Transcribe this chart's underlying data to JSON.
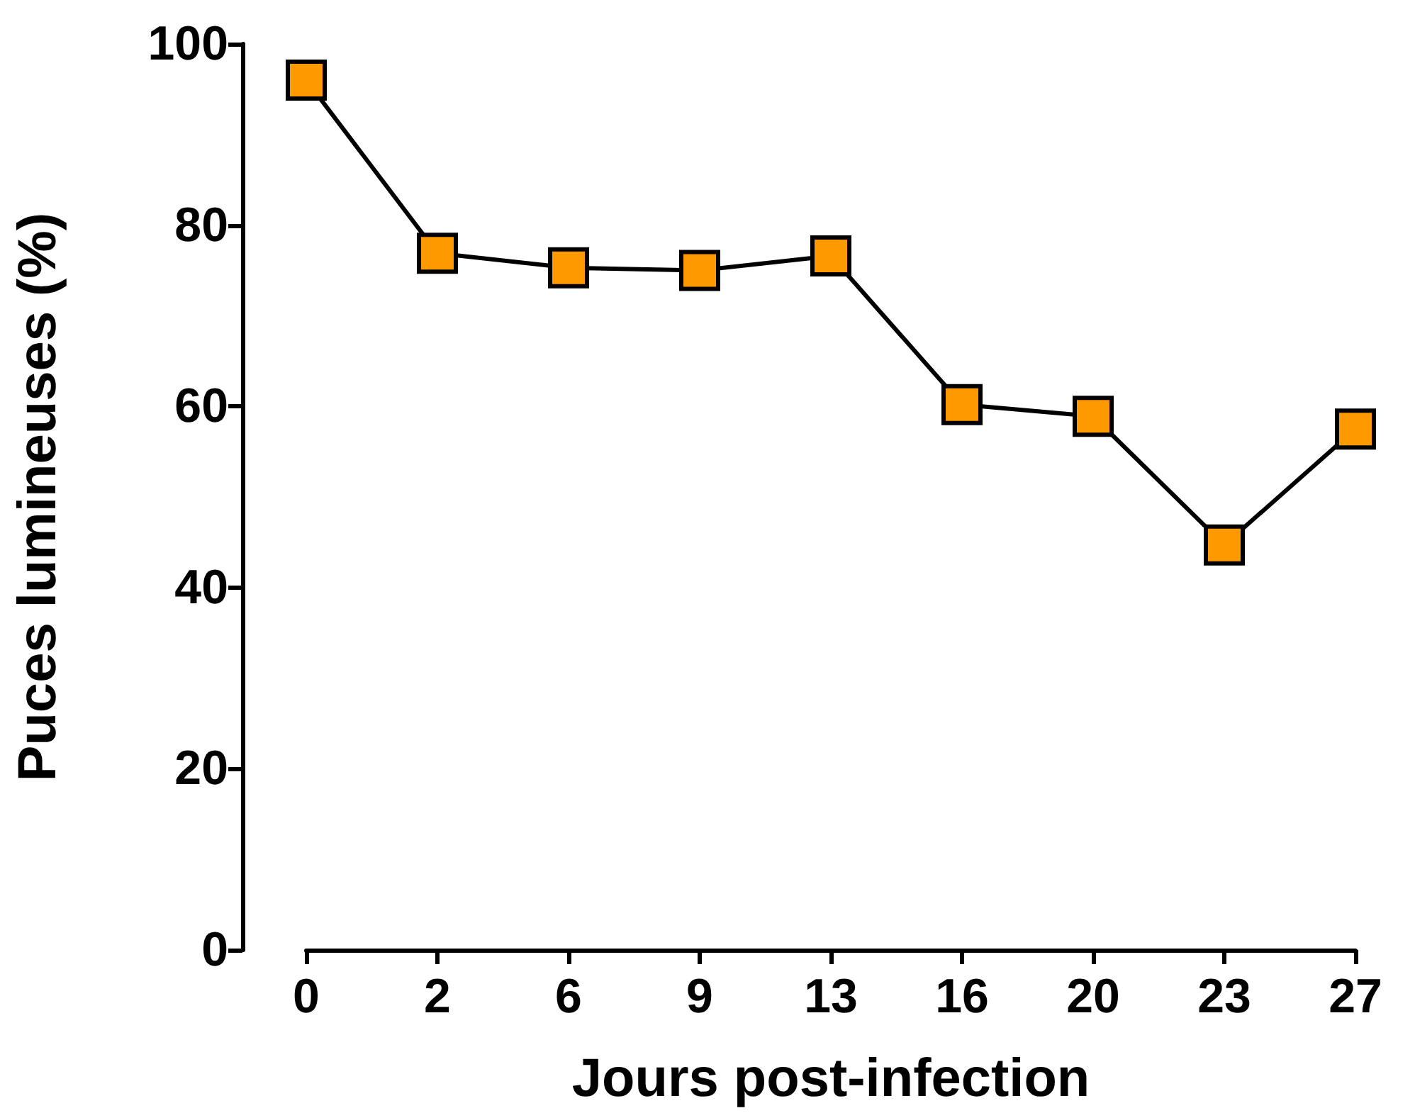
{
  "chart_data": {
    "type": "line",
    "xlabel": "Jours post-infection",
    "ylabel": "Puces lumineuses (%)",
    "categories": [
      "0",
      "2",
      "6",
      "9",
      "13",
      "16",
      "20",
      "23",
      "27"
    ],
    "series": [
      {
        "color": "#ff9900",
        "values": [
          96.0,
          76.9,
          75.3,
          75.0,
          76.6,
          60.2,
          58.9,
          44.7,
          57.5
        ]
      }
    ],
    "ylim": [
      0,
      100
    ],
    "yticks": [
      0,
      20,
      40,
      60,
      80,
      100
    ],
    "grid": false,
    "marker": "square",
    "line_style": "solid"
  }
}
